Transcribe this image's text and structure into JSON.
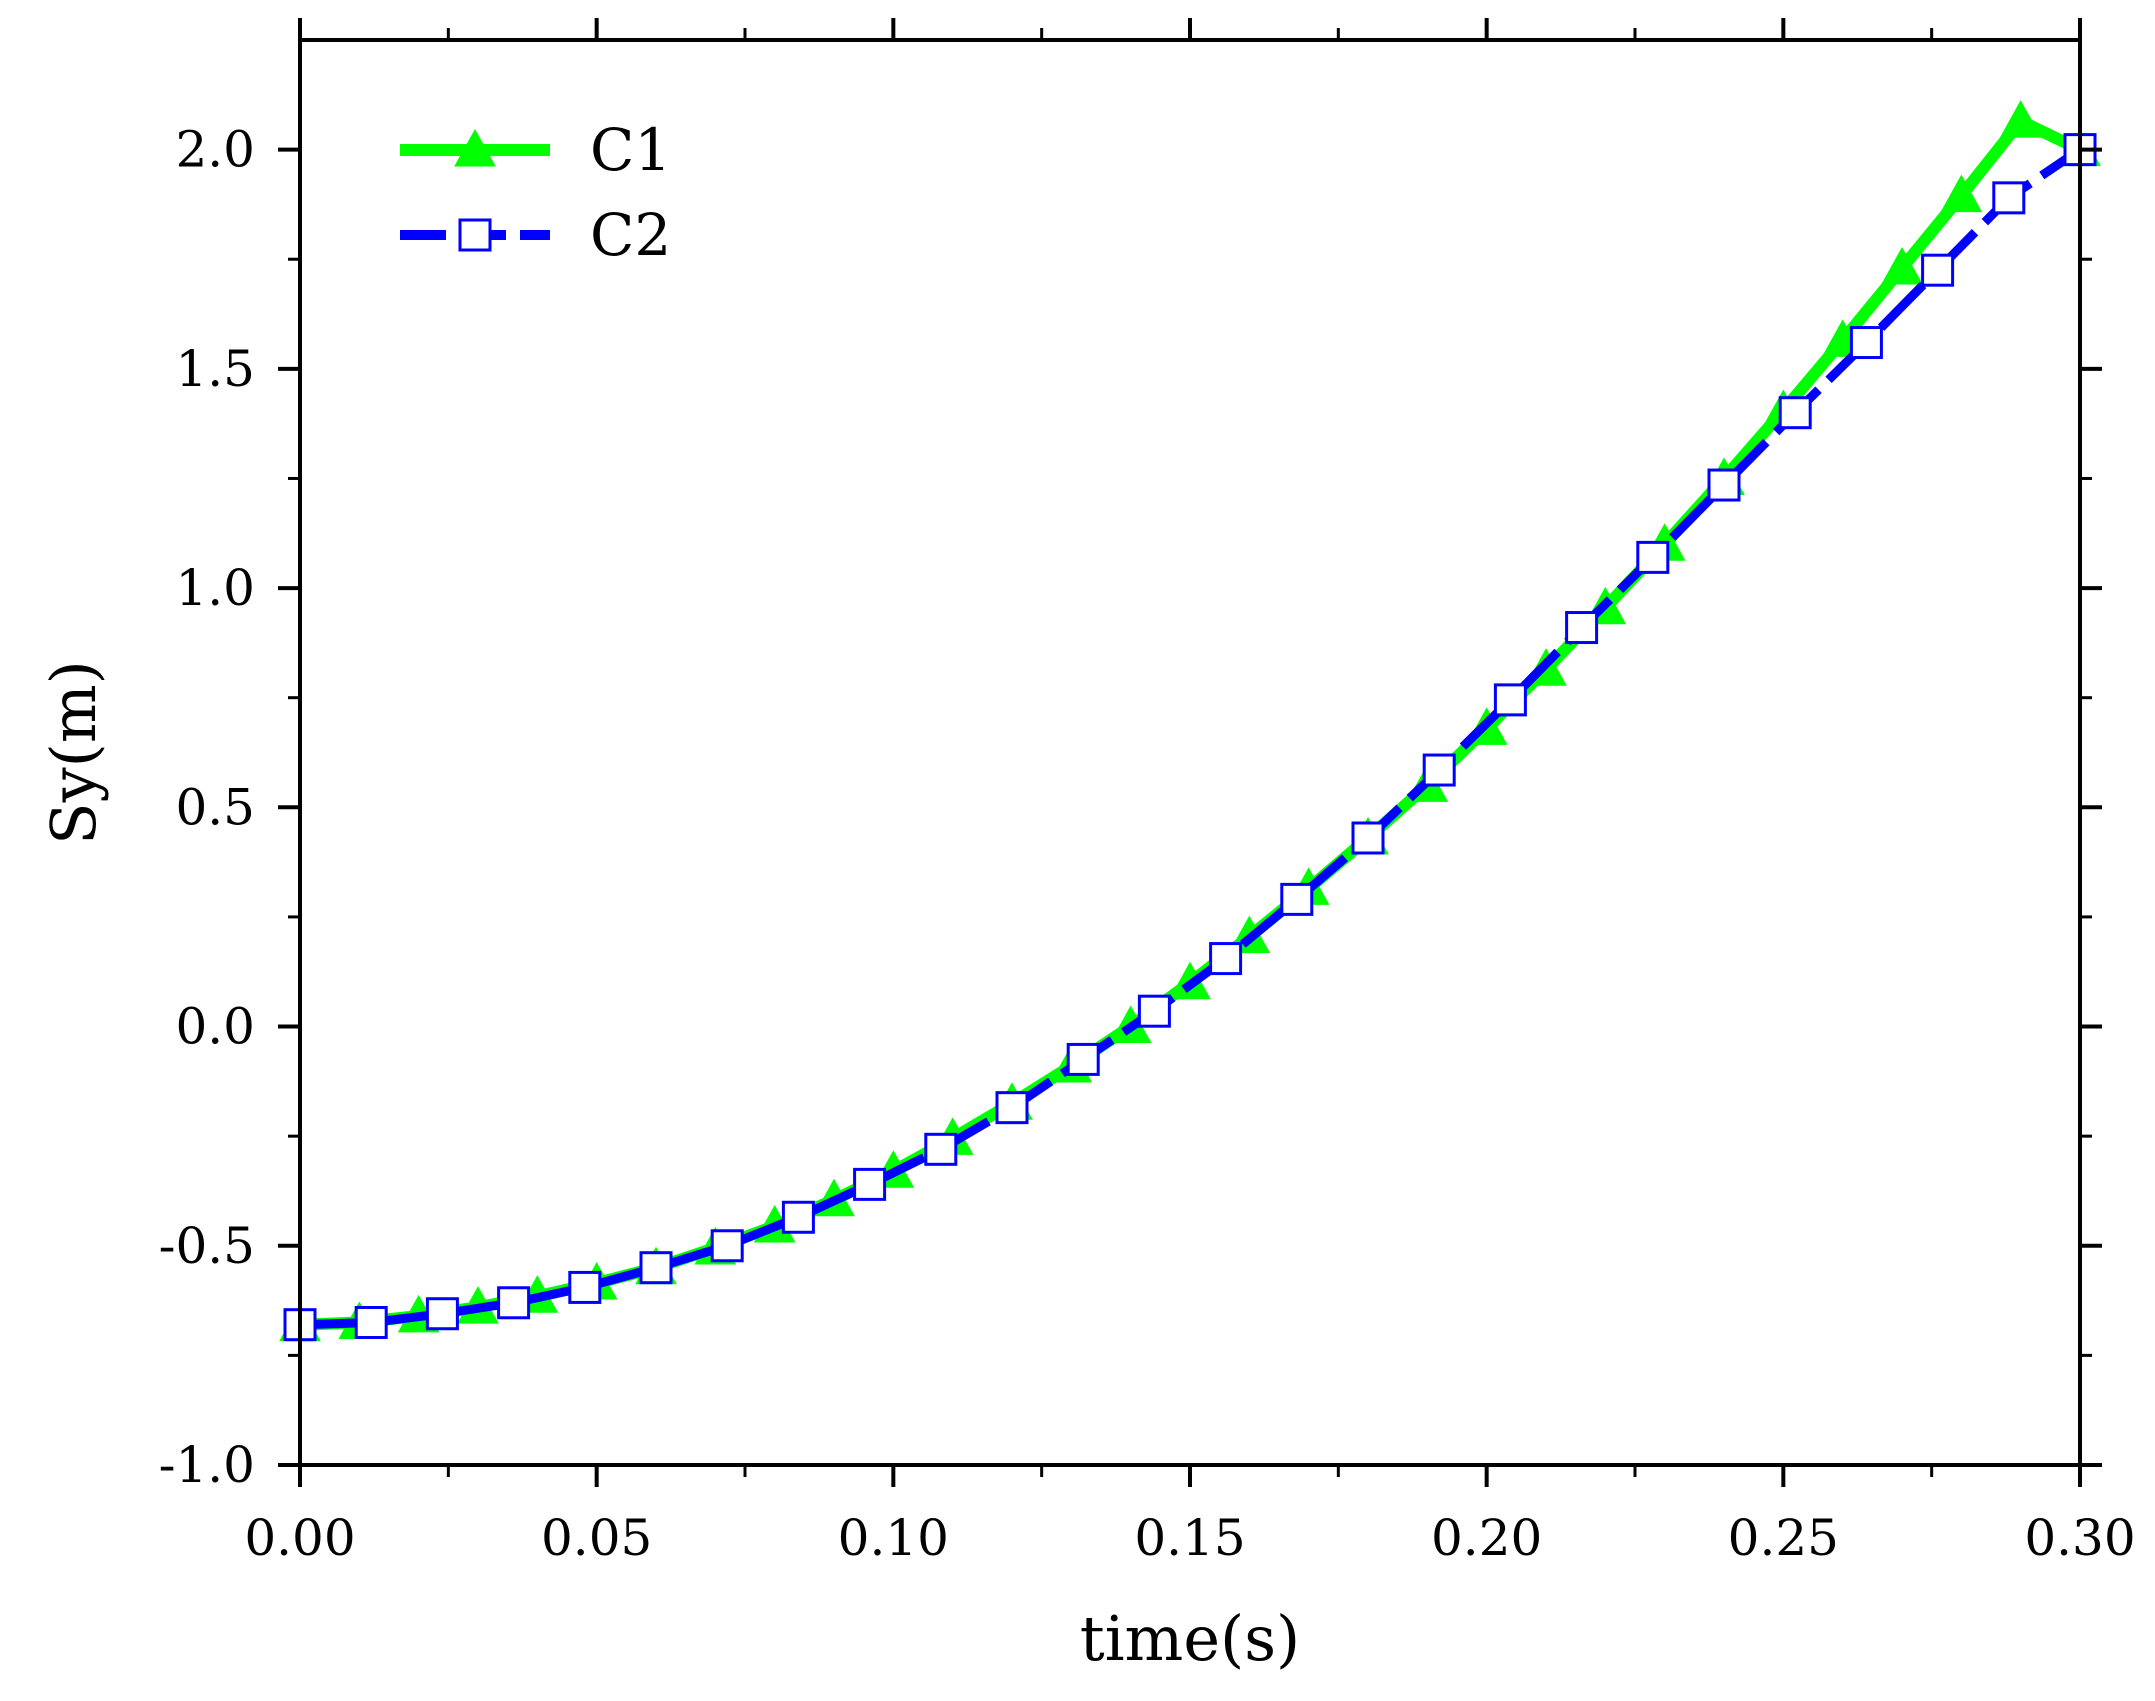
{
  "chart_data": {
    "type": "line",
    "xlabel": "time(s)",
    "ylabel": "Sy(m)",
    "xlim": [
      0.0,
      0.3
    ],
    "ylim": [
      -1.0,
      2.25
    ],
    "x_ticks": [
      "0.00",
      "0.05",
      "0.10",
      "0.15",
      "0.20",
      "0.25",
      "0.30"
    ],
    "x_tick_values": [
      0.0,
      0.05,
      0.1,
      0.15,
      0.2,
      0.25,
      0.3
    ],
    "y_ticks": [
      "-1.0",
      "-0.5",
      "0.0",
      "0.5",
      "1.0",
      "1.5",
      "2.0"
    ],
    "y_tick_values": [
      -1.0,
      -0.5,
      0.0,
      0.5,
      1.0,
      1.5,
      2.0
    ],
    "grid": false,
    "legend_position": "top-left",
    "series": [
      {
        "name": "C1",
        "color": "#00ff00",
        "marker": "triangle",
        "line_style": "solid",
        "x": [
          0.0,
          0.01,
          0.02,
          0.03,
          0.04,
          0.05,
          0.06,
          0.07,
          0.08,
          0.09,
          0.1,
          0.11,
          0.12,
          0.13,
          0.14,
          0.15,
          0.16,
          0.17,
          0.18,
          0.19,
          0.2,
          0.21,
          0.22,
          0.23,
          0.24,
          0.25,
          0.26,
          0.27,
          0.28,
          0.29,
          0.3
        ],
        "y": [
          -0.68,
          -0.675,
          -0.66,
          -0.64,
          -0.615,
          -0.585,
          -0.55,
          -0.505,
          -0.455,
          -0.395,
          -0.33,
          -0.255,
          -0.175,
          -0.09,
          0.0,
          0.1,
          0.205,
          0.315,
          0.43,
          0.55,
          0.68,
          0.815,
          0.955,
          1.1,
          1.25,
          1.405,
          1.565,
          1.73,
          1.895,
          2.065,
          2.0
        ]
      },
      {
        "name": "C2",
        "color": "#0000ff",
        "marker": "square-open",
        "line_style": "dashed",
        "x": [
          0.0,
          0.012,
          0.024,
          0.036,
          0.048,
          0.06,
          0.072,
          0.084,
          0.096,
          0.108,
          0.12,
          0.132,
          0.144,
          0.156,
          0.168,
          0.18,
          0.192,
          0.204,
          0.216,
          0.228,
          0.24,
          0.252,
          0.264,
          0.276,
          0.288,
          0.3
        ],
        "y": [
          -0.68,
          -0.675,
          -0.655,
          -0.63,
          -0.595,
          -0.55,
          -0.5,
          -0.435,
          -0.36,
          -0.28,
          -0.185,
          -0.075,
          0.035,
          0.155,
          0.29,
          0.43,
          0.585,
          0.745,
          0.91,
          1.07,
          1.235,
          1.4,
          1.56,
          1.725,
          1.89,
          2.0
        ]
      }
    ]
  }
}
